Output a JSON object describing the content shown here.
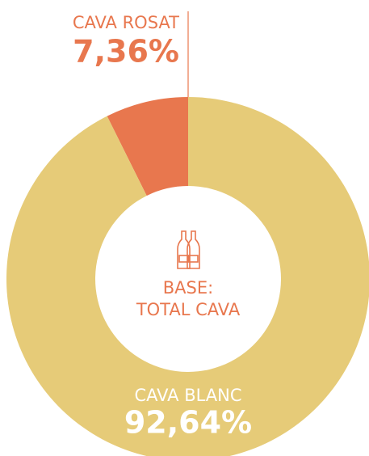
{
  "chart_data": {
    "type": "pie",
    "categories": [
      "CAVA ROSAT",
      "CAVA BLANC"
    ],
    "values": [
      7.36,
      92.64
    ],
    "value_labels": [
      "7,36%",
      "92,64%"
    ],
    "colors": [
      "#e8774e",
      "#e6cb78"
    ],
    "center_label": [
      "BASE:",
      "TOTAL CAVA"
    ]
  }
}
